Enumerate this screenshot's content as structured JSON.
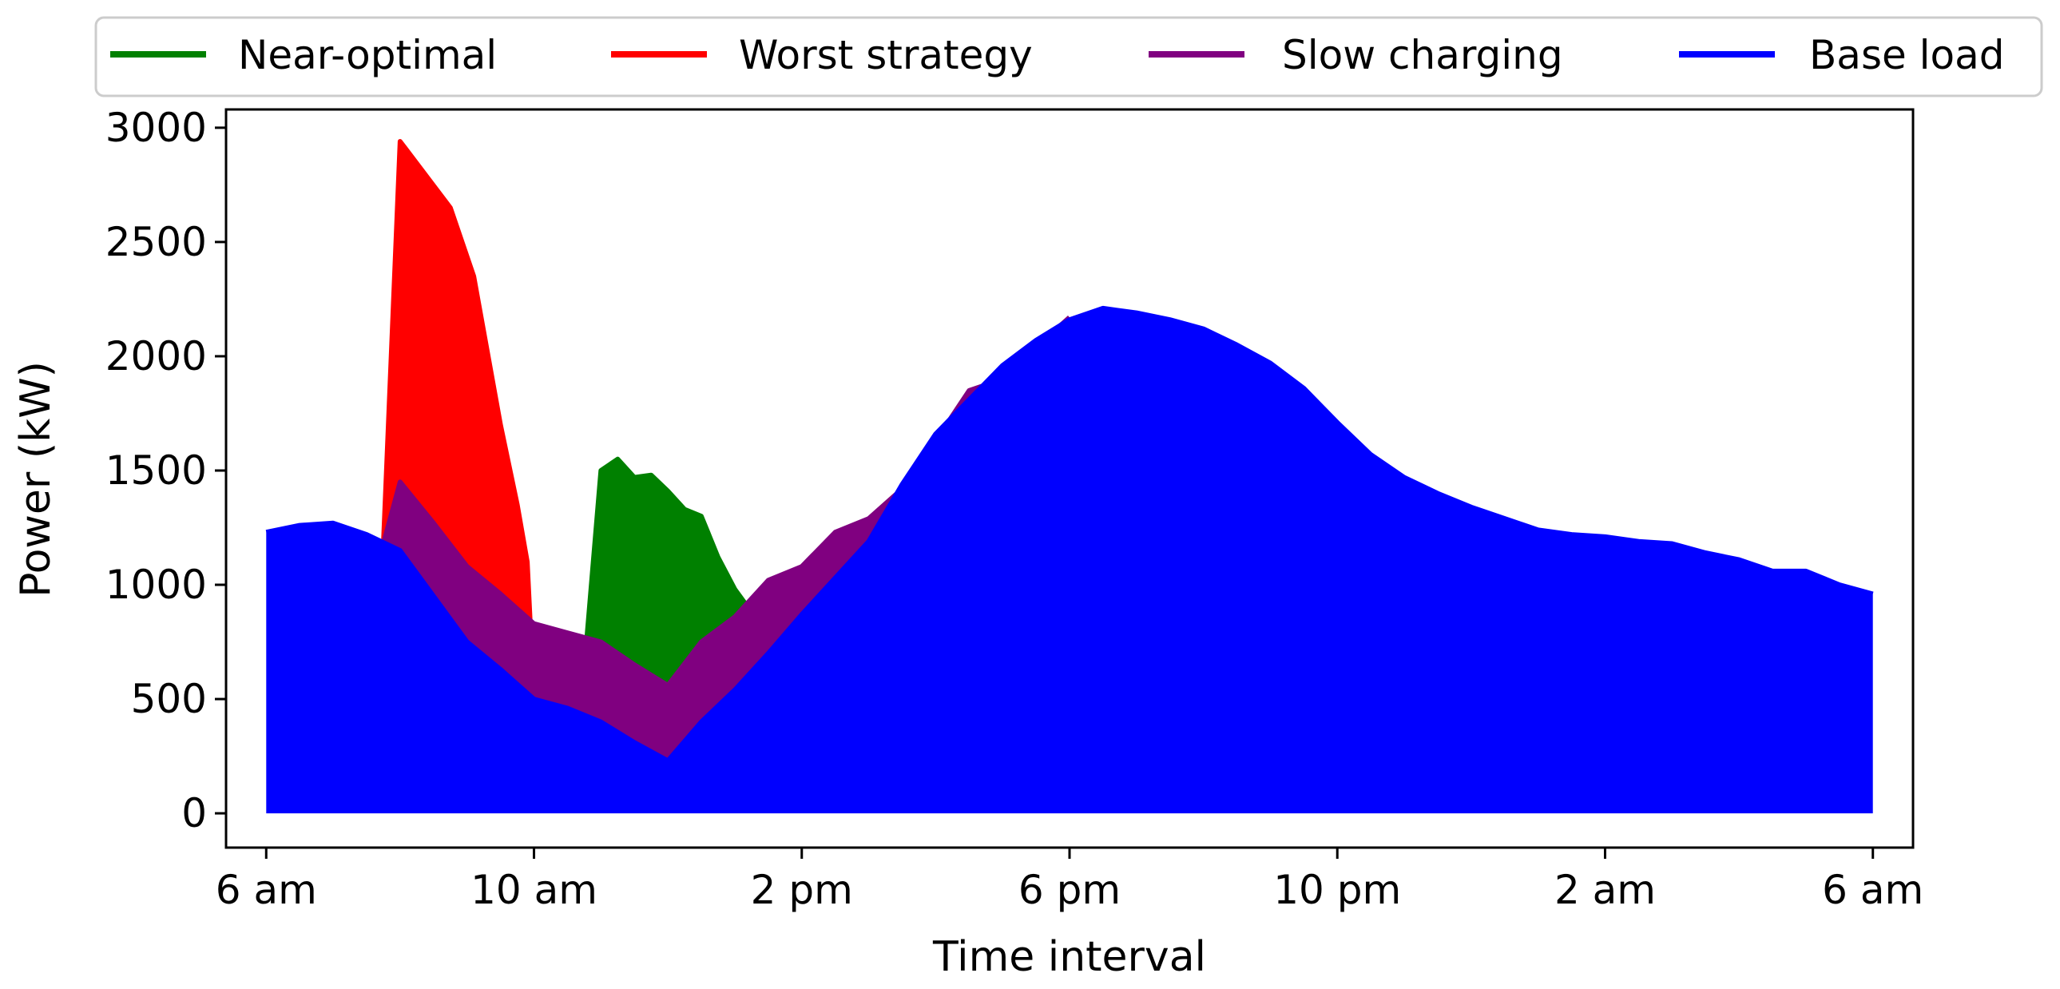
{
  "chart_data": {
    "type": "area",
    "xlabel": "Time interval",
    "ylabel": "Power (kW)",
    "x_unit": "hours since 6 am",
    "xlim": [
      -1.2,
      49.2
    ],
    "ylim": [
      -150,
      3080
    ],
    "x_ticks": [
      {
        "x": 0,
        "label": "6 am"
      },
      {
        "x": 8,
        "label": "10 am"
      },
      {
        "x": 16,
        "label": "2 pm"
      },
      {
        "x": 24,
        "label": "6 pm"
      },
      {
        "x": 32,
        "label": "10 pm"
      },
      {
        "x": 40,
        "label": "2 am"
      },
      {
        "x": 48,
        "label": "6 am"
      }
    ],
    "y_ticks": [
      {
        "y": 0,
        "label": "0"
      },
      {
        "y": 500,
        "label": "500"
      },
      {
        "y": 1000,
        "label": "1000"
      },
      {
        "y": 1500,
        "label": "1500"
      },
      {
        "y": 2000,
        "label": "2000"
      },
      {
        "y": 2500,
        "label": "2500"
      },
      {
        "y": 3000,
        "label": "3000"
      }
    ],
    "grid": false,
    "legend": {
      "placement": "above-plot",
      "entries": [
        {
          "label": "Near-optimal",
          "color": "#008000"
        },
        {
          "label": "Worst strategy",
          "color": "#ff0000"
        },
        {
          "label": "Slow charging",
          "color": "#800080"
        },
        {
          "label": "Base load",
          "color": "#0000ff"
        }
      ]
    },
    "series": [
      {
        "name": "Base load",
        "color": "#0000ff",
        "fill": "zero",
        "points": [
          [
            0,
            1230
          ],
          [
            1,
            1260
          ],
          [
            2,
            1270
          ],
          [
            3,
            1220
          ],
          [
            4,
            1150
          ],
          [
            5,
            950
          ],
          [
            6,
            750
          ],
          [
            7,
            630
          ],
          [
            8,
            500
          ],
          [
            9,
            460
          ],
          [
            10,
            400
          ],
          [
            11,
            310
          ],
          [
            12,
            230
          ],
          [
            13,
            400
          ],
          [
            14,
            540
          ],
          [
            15,
            700
          ],
          [
            16,
            870
          ],
          [
            17,
            1030
          ],
          [
            18,
            1190
          ],
          [
            19,
            1440
          ],
          [
            20,
            1660
          ],
          [
            21,
            1810
          ],
          [
            22,
            1960
          ],
          [
            23,
            2070
          ],
          [
            24,
            2160
          ],
          [
            25,
            2210
          ],
          [
            26,
            2190
          ],
          [
            27,
            2160
          ],
          [
            28,
            2120
          ],
          [
            29,
            2050
          ],
          [
            30,
            1970
          ],
          [
            31,
            1860
          ],
          [
            32,
            1710
          ],
          [
            33,
            1570
          ],
          [
            34,
            1470
          ],
          [
            35,
            1400
          ],
          [
            36,
            1340
          ],
          [
            37,
            1290
          ],
          [
            38,
            1240
          ],
          [
            39,
            1220
          ],
          [
            40,
            1210
          ],
          [
            41,
            1190
          ],
          [
            42,
            1180
          ],
          [
            43,
            1140
          ],
          [
            44,
            1110
          ],
          [
            45,
            1060
          ],
          [
            46,
            1060
          ],
          [
            47,
            1000
          ],
          [
            48,
            960
          ]
        ]
      },
      {
        "name": "Slow charging",
        "color": "#800080",
        "fill": "base",
        "points": [
          [
            3.5,
            1180
          ],
          [
            4,
            1450
          ],
          [
            5,
            1270
          ],
          [
            6,
            1080
          ],
          [
            7,
            960
          ],
          [
            8,
            830
          ],
          [
            9,
            790
          ],
          [
            10,
            750
          ],
          [
            11,
            650
          ],
          [
            12,
            560
          ],
          [
            13,
            750
          ],
          [
            14,
            860
          ],
          [
            15,
            1020
          ],
          [
            16,
            1080
          ],
          [
            17,
            1230
          ],
          [
            18,
            1290
          ],
          [
            19,
            1420
          ],
          [
            20,
            1630
          ],
          [
            21,
            1850
          ],
          [
            22,
            1900
          ],
          [
            23,
            2040
          ],
          [
            24,
            2170
          ]
        ]
      },
      {
        "name": "Worst strategy",
        "color": "#ff0000",
        "fill": "base",
        "points": [
          [
            3.5,
            1180
          ],
          [
            4,
            2940
          ],
          [
            5.5,
            2650
          ],
          [
            6.2,
            2350
          ],
          [
            7,
            1700
          ],
          [
            7.5,
            1350
          ],
          [
            7.8,
            1100
          ],
          [
            8,
            500
          ]
        ]
      },
      {
        "name": "Near-optimal",
        "color": "#008000",
        "fill": "base",
        "points": [
          [
            3.5,
            1180
          ],
          [
            4,
            1200
          ],
          [
            5,
            1030
          ],
          [
            6,
            810
          ],
          [
            7,
            710
          ],
          [
            7.5,
            690
          ],
          [
            8,
            620
          ],
          [
            8.5,
            660
          ],
          [
            9.5,
            630
          ],
          [
            10,
            1500
          ],
          [
            10.5,
            1550
          ],
          [
            11,
            1470
          ],
          [
            11.5,
            1480
          ],
          [
            12,
            1410
          ],
          [
            12.5,
            1330
          ],
          [
            13,
            1300
          ],
          [
            13.5,
            1120
          ],
          [
            14,
            980
          ],
          [
            14.5,
            880
          ],
          [
            15,
            800
          ],
          [
            15.5,
            770
          ],
          [
            16,
            870
          ]
        ]
      }
    ]
  }
}
